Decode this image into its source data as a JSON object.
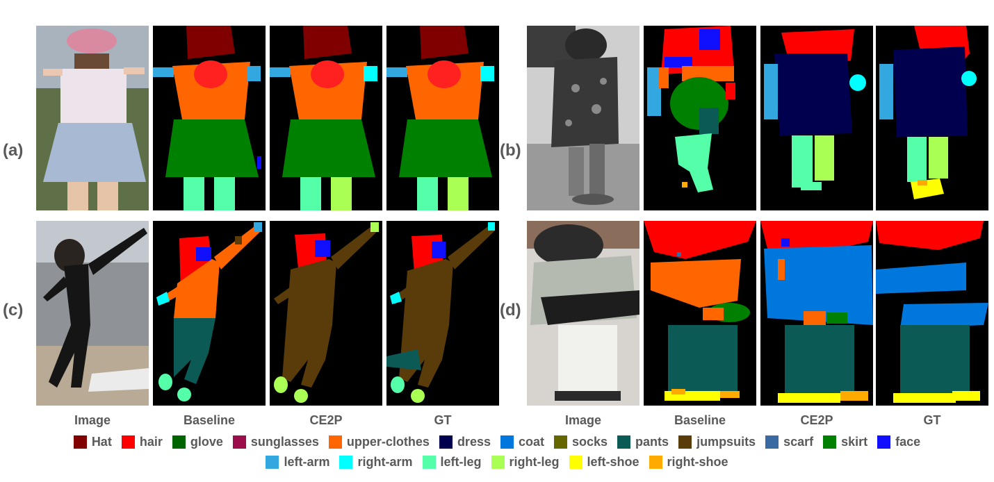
{
  "row_labels": [
    "(a)",
    "(b)",
    "(c)",
    "(d)"
  ],
  "column_labels": [
    "Image",
    "Baseline",
    "CE2P",
    "GT"
  ],
  "legend": [
    {
      "label": "Hat",
      "color": "#800000"
    },
    {
      "label": "hair",
      "color": "#ff0000"
    },
    {
      "label": "glove",
      "color": "#006400"
    },
    {
      "label": "sunglasses",
      "color": "#9b0d4b"
    },
    {
      "label": "upper-clothes",
      "color": "#ff6600"
    },
    {
      "label": "dress",
      "color": "#00004f"
    },
    {
      "label": "coat",
      "color": "#0077dd"
    },
    {
      "label": "socks",
      "color": "#666600"
    },
    {
      "label": "pants",
      "color": "#0b5a55"
    },
    {
      "label": "jumpsuits",
      "color": "#5a3c0a"
    },
    {
      "label": "scarf",
      "color": "#3a6aa2"
    },
    {
      "label": "skirt",
      "color": "#008000"
    },
    {
      "label": "face",
      "color": "#1010ff"
    },
    {
      "label": "left-arm",
      "color": "#33a8e0"
    },
    {
      "label": "right-arm",
      "color": "#00ffff"
    },
    {
      "label": "left-leg",
      "color": "#55ffaa"
    },
    {
      "label": "right-leg",
      "color": "#aaff55"
    },
    {
      "label": "left-shoe",
      "color": "#ffff00"
    },
    {
      "label": "right-shoe",
      "color": "#ffaa00"
    }
  ]
}
